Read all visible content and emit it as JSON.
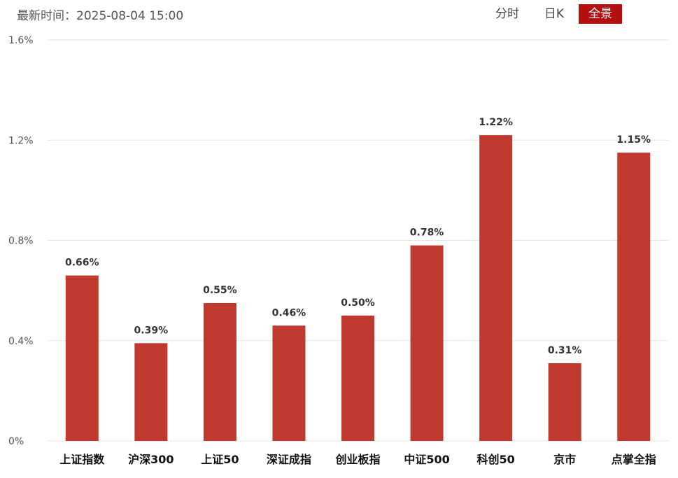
{
  "header": {
    "time_label": "最新时间：2025-08-04 15:00",
    "tabs": [
      {
        "label": "分时",
        "active": false
      },
      {
        "label": "日K",
        "active": false
      },
      {
        "label": "全景",
        "active": true
      }
    ]
  },
  "colors": {
    "bar": "#c0392f",
    "active_tab": "#b3100f",
    "grid": "#e6e6e6"
  },
  "chart_data": {
    "type": "bar",
    "categories": [
      "上证指数",
      "沪深300",
      "上证50",
      "深证成指",
      "创业板指",
      "中证500",
      "科创50",
      "京市",
      "点掌全指"
    ],
    "values": [
      0.66,
      0.39,
      0.55,
      0.46,
      0.5,
      0.78,
      1.22,
      0.31,
      1.15
    ],
    "data_labels": [
      "0.66%",
      "0.39%",
      "0.55%",
      "0.46%",
      "0.50%",
      "0.78%",
      "1.22%",
      "0.31%",
      "1.15%"
    ],
    "y_ticks": [
      0,
      0.4,
      0.8,
      1.2,
      1.6
    ],
    "y_tick_labels": [
      "0%",
      "0.4%",
      "0.8%",
      "1.2%",
      "1.6%"
    ],
    "ylim": [
      0,
      1.6
    ],
    "grid": true,
    "title": "",
    "xlabel": "",
    "ylabel": ""
  }
}
